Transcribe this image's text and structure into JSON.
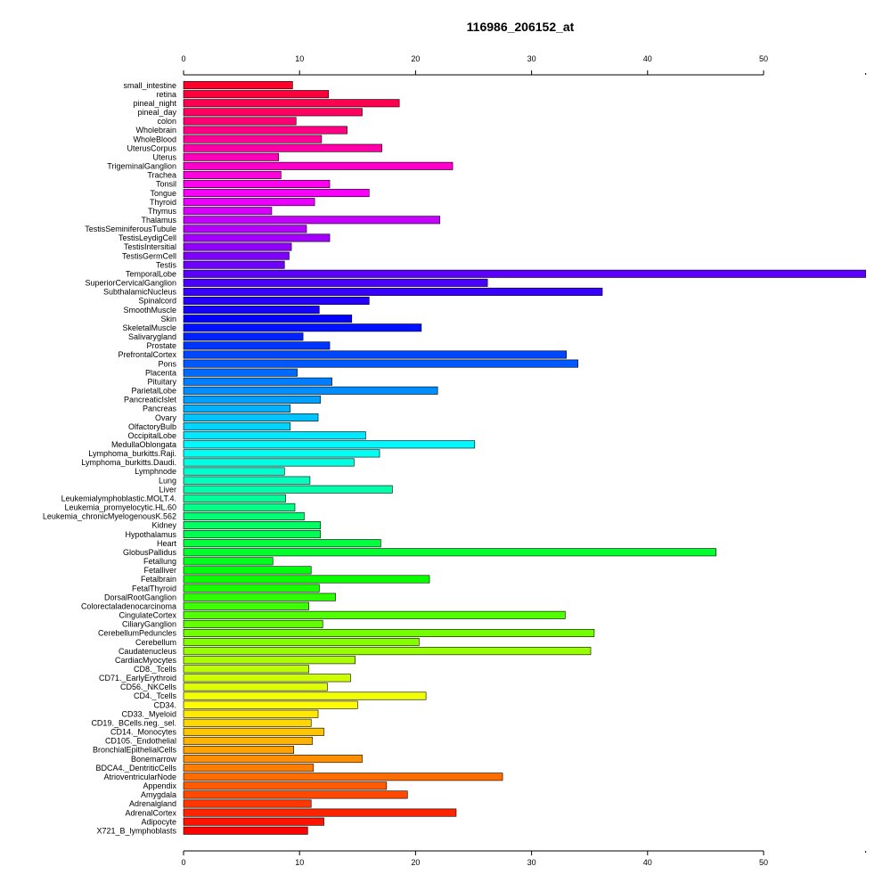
{
  "chart_data": {
    "type": "bar",
    "orientation": "horizontal",
    "title": "116986_206152_at",
    "xlabel": "",
    "ylabel": "",
    "xlim": [
      0,
      58.8
    ],
    "ticks": [
      0,
      10,
      20,
      30,
      40,
      50
    ],
    "tick_labels": [
      "0",
      "10",
      "20",
      "30",
      "40",
      "50"
    ],
    "grid": false,
    "colors": "rainbow gradient from red (top) through violet, blue, cyan, green, yellow, orange to red (bottom)",
    "categories": [
      "small_intestine",
      "retina",
      "pineal_night",
      "pineal_day",
      "colon",
      "Wholebrain",
      "WholeBlood",
      "UterusCorpus",
      "Uterus",
      "TrigeminalGanglion",
      "Trachea",
      "Tonsil",
      "Tongue",
      "Thyroid",
      "Thymus",
      "Thalamus",
      "TestisSeminiferousTubule",
      "TestisLeydigCell",
      "TestisIntersitial",
      "TestisGermCell",
      "Testis",
      "TemporalLobe",
      "SuperiorCervicalGanglion",
      "SubthalamicNucleus",
      "Spinalcord",
      "SmoothMuscle",
      "Skin",
      "SkeletalMuscle",
      "Salivarygland",
      "Prostate",
      "PrefrontalCortex",
      "Pons",
      "Placenta",
      "Pituitary",
      "ParietalLobe",
      "PancreaticIslet",
      "Pancreas",
      "Ovary",
      "OlfactoryBulb",
      "OccipitalLobe",
      "MedullaOblongata",
      "Lymphoma_burkitts.Raji.",
      "Lymphoma_burkitts.Daudi.",
      "Lymphnode",
      "Lung",
      "Liver",
      "Leukemialymphoblastic.MOLT.4.",
      "Leukemia_promyelocytic.HL.60",
      "Leukemia_chronicMyelogenousK.562",
      "Kidney",
      "Hypothalamus",
      "Heart",
      "GlobusPallidus",
      "Fetallung",
      "Fetalliver",
      "Fetalbrain",
      "FetalThyroid",
      "DorsalRootGanglion",
      "Colorectaladenocarcinoma",
      "CingulateCortex",
      "CiliaryGanglion",
      "CerebellumPeduncles",
      "Cerebellum",
      "Caudatenucleus",
      "CardiacMyocytes",
      "CD8._Tcells",
      "CD71._EarlyErythroid",
      "CD56._NKCells",
      "CD4._Tcells",
      "CD34.",
      "CD33._Myeloid",
      "CD19._BCells.neg._sel.",
      "CD14._Monocytes",
      "CD105._Endothelial",
      "BronchialEpithelialCells",
      "Bonemarrow",
      "BDCA4._DentriticCells",
      "AtrioventricularNode",
      "Appendix",
      "Amygdala",
      "Adrenalgland",
      "AdrenalCortex",
      "Adipocyte",
      "X721_B_lymphoblasts"
    ],
    "values": [
      9.4,
      12.5,
      18.6,
      15.4,
      9.7,
      14.1,
      11.9,
      17.1,
      8.2,
      23.2,
      8.4,
      12.6,
      16.0,
      11.3,
      7.6,
      22.1,
      10.6,
      12.6,
      9.3,
      9.1,
      8.7,
      58.8,
      26.2,
      36.1,
      16.0,
      11.7,
      14.5,
      20.5,
      10.3,
      12.6,
      33.0,
      34.0,
      9.8,
      12.8,
      21.9,
      11.8,
      9.2,
      11.6,
      9.2,
      15.7,
      25.1,
      16.9,
      14.7,
      8.7,
      10.9,
      18.0,
      8.8,
      9.6,
      10.4,
      11.8,
      11.8,
      17.0,
      45.9,
      7.7,
      11.0,
      21.2,
      11.7,
      13.1,
      10.8,
      32.9,
      12.0,
      35.4,
      20.3,
      35.1,
      14.8,
      10.8,
      14.4,
      12.4,
      20.9,
      15.0,
      11.6,
      11.0,
      12.1,
      11.1,
      9.5,
      15.4,
      11.2,
      27.5,
      17.5,
      19.3,
      11.0,
      23.5,
      12.1,
      10.7
    ]
  }
}
